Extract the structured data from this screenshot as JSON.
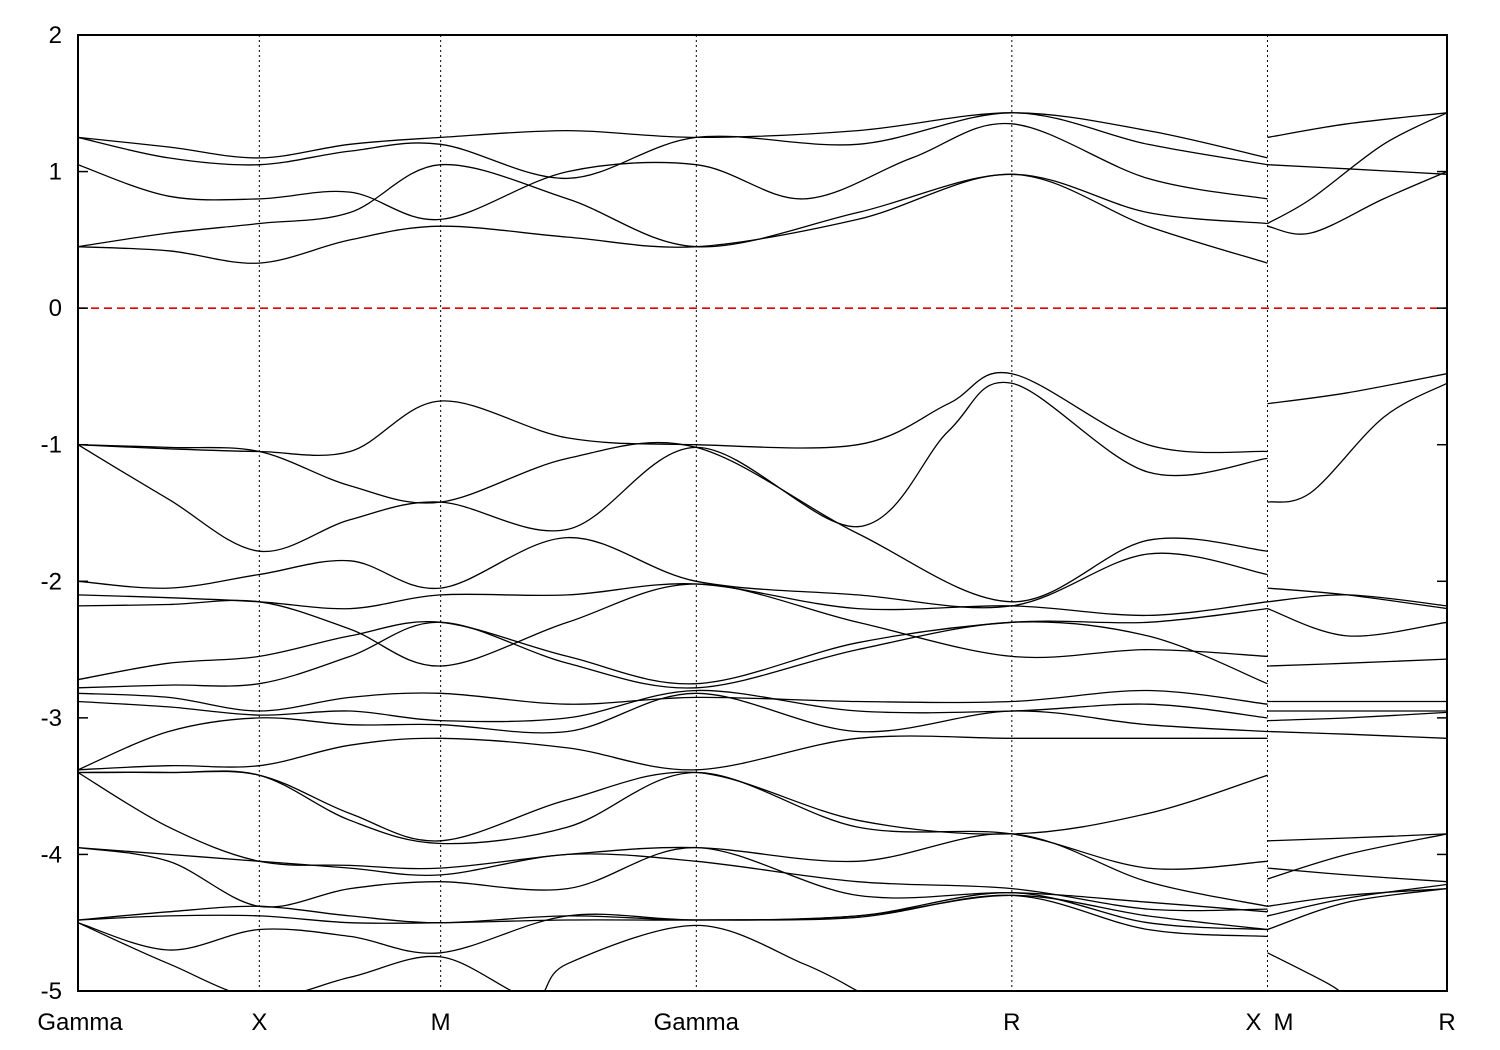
{
  "chart_data": {
    "type": "line",
    "title": "",
    "xlabel": "",
    "ylabel": "",
    "ylim": [
      -5,
      2
    ],
    "yticks": [
      2,
      1,
      0,
      -1,
      -2,
      -3,
      -4,
      -5
    ],
    "ytick_labels": [
      "2",
      "1",
      "0",
      "-1",
      "-2",
      "-3",
      "-4",
      "-5"
    ],
    "xlim": [
      0,
      7.55
    ],
    "kpoints": [
      {
        "label": "Gamma",
        "x": 0
      },
      {
        "label": "X",
        "x": 1.0
      },
      {
        "label": "M",
        "x": 2.0
      },
      {
        "label": "Gamma",
        "x": 3.41
      },
      {
        "label": "R",
        "x": 5.15
      },
      {
        "label": "X",
        "x": 6.56
      },
      {
        "label": "M",
        "x": 6.56
      },
      {
        "label": "R",
        "x": 7.55
      }
    ],
    "segment_breaks": [
      6.56
    ],
    "fermi_level": 0,
    "fermi_color": "#e00000",
    "line_color": "#000000",
    "grid": false,
    "series": [
      {
        "x": [
          0,
          0.5,
          1.0,
          1.5,
          2.0,
          2.7,
          3.41,
          4.3,
          5.15,
          5.9,
          6.56
        ],
        "y": [
          1.25,
          1.18,
          1.1,
          1.2,
          1.25,
          1.3,
          1.25,
          1.3,
          1.43,
          1.3,
          1.1
        ]
      },
      {
        "x": [
          0,
          0.5,
          1.0,
          1.5,
          2.0,
          2.7,
          3.41,
          4.3,
          5.15,
          5.9,
          6.56
        ],
        "y": [
          1.25,
          1.1,
          1.05,
          1.15,
          1.2,
          0.95,
          1.25,
          1.2,
          1.43,
          1.2,
          1.05
        ]
      },
      {
        "x": [
          0,
          0.5,
          1.0,
          1.5,
          2.0,
          2.7,
          3.41,
          4.0,
          4.6,
          5.15,
          5.9,
          6.56
        ],
        "y": [
          1.05,
          0.82,
          0.8,
          0.85,
          0.65,
          1.0,
          1.05,
          0.8,
          1.1,
          1.35,
          0.95,
          0.8
        ]
      },
      {
        "x": [
          0,
          0.5,
          1.0,
          1.5,
          2.0,
          2.7,
          3.41,
          4.3,
          5.15,
          5.9,
          6.56
        ],
        "y": [
          0.45,
          0.55,
          0.62,
          0.7,
          1.05,
          0.8,
          0.45,
          0.7,
          0.98,
          0.7,
          0.62
        ]
      },
      {
        "x": [
          0,
          0.5,
          1.0,
          1.5,
          2.0,
          2.7,
          3.41,
          4.3,
          5.15,
          5.9,
          6.56
        ],
        "y": [
          0.45,
          0.42,
          0.33,
          0.5,
          0.6,
          0.52,
          0.45,
          0.65,
          0.98,
          0.6,
          0.33
        ]
      },
      {
        "x": [
          6.56,
          7.0,
          7.55
        ],
        "y": [
          1.25,
          1.35,
          1.43
        ]
      },
      {
        "x": [
          6.56,
          7.0,
          7.55
        ],
        "y": [
          1.05,
          1.02,
          0.98
        ]
      },
      {
        "x": [
          6.56,
          6.8,
          7.2,
          7.55
        ],
        "y": [
          0.62,
          0.8,
          1.2,
          1.43
        ]
      },
      {
        "x": [
          6.56,
          6.8,
          7.2,
          7.55
        ],
        "y": [
          0.6,
          0.55,
          0.8,
          1.0
        ]
      },
      {
        "x": [
          0,
          0.5,
          1.0,
          1.5,
          2.0,
          2.7,
          3.41,
          4.3,
          4.8,
          5.15,
          5.9,
          6.56
        ],
        "y": [
          -1.0,
          -1.03,
          -1.05,
          -1.05,
          -0.68,
          -0.95,
          -1.0,
          -1.0,
          -0.7,
          -0.48,
          -1.0,
          -1.05
        ]
      },
      {
        "x": [
          0,
          0.5,
          1.0,
          1.5,
          2.0,
          2.7,
          3.41,
          4.3,
          4.8,
          5.15,
          5.9,
          6.56
        ],
        "y": [
          -1.0,
          -1.4,
          -1.78,
          -1.55,
          -1.42,
          -1.62,
          -1.02,
          -1.6,
          -0.9,
          -0.55,
          -1.2,
          -1.1
        ]
      },
      {
        "x": [
          0,
          0.5,
          1.0,
          1.5,
          2.0,
          2.7,
          3.41,
          4.3,
          5.15,
          5.9,
          6.56
        ],
        "y": [
          -1.0,
          -1.02,
          -1.05,
          -1.3,
          -1.42,
          -1.1,
          -1.02,
          -1.65,
          -2.15,
          -1.7,
          -1.78
        ]
      },
      {
        "x": [
          0,
          0.5,
          1.0,
          1.5,
          2.0,
          2.7,
          3.41,
          4.3,
          5.15,
          5.9,
          6.56
        ],
        "y": [
          -2.0,
          -2.05,
          -1.95,
          -1.85,
          -2.05,
          -1.68,
          -2.0,
          -2.1,
          -2.18,
          -1.8,
          -1.95
        ]
      },
      {
        "x": [
          0,
          0.5,
          1.0,
          1.5,
          2.0,
          2.7,
          3.41,
          4.3,
          5.15,
          5.9,
          6.56
        ],
        "y": [
          -2.1,
          -2.12,
          -2.15,
          -2.2,
          -2.1,
          -2.1,
          -2.02,
          -2.2,
          -2.18,
          -2.25,
          -2.15
        ]
      },
      {
        "x": [
          0,
          0.5,
          1.0,
          1.5,
          2.0,
          2.7,
          3.41,
          4.3,
          5.15,
          5.9,
          6.56
        ],
        "y": [
          -2.18,
          -2.17,
          -2.15,
          -2.35,
          -2.62,
          -2.3,
          -2.02,
          -2.3,
          -2.55,
          -2.5,
          -2.55
        ]
      },
      {
        "x": [
          0,
          0.5,
          1.0,
          1.5,
          2.0,
          2.7,
          3.41,
          4.3,
          5.15,
          5.9,
          6.56
        ],
        "y": [
          -2.72,
          -2.6,
          -2.55,
          -2.4,
          -2.3,
          -2.55,
          -2.75,
          -2.45,
          -2.3,
          -2.3,
          -2.2
        ]
      },
      {
        "x": [
          0,
          0.5,
          1.0,
          1.5,
          2.0,
          2.7,
          3.41,
          4.3,
          5.15,
          5.9,
          6.56
        ],
        "y": [
          -2.78,
          -2.76,
          -2.75,
          -2.55,
          -2.3,
          -2.6,
          -2.78,
          -2.5,
          -2.3,
          -2.4,
          -2.75
        ]
      },
      {
        "x": [
          0,
          0.5,
          1.0,
          1.5,
          2.0,
          2.7,
          3.41,
          4.3,
          5.15,
          5.9,
          6.56
        ],
        "y": [
          -2.82,
          -2.85,
          -2.95,
          -2.85,
          -2.82,
          -2.9,
          -2.85,
          -2.88,
          -2.88,
          -2.8,
          -2.9
        ]
      },
      {
        "x": [
          0,
          0.5,
          1.0,
          1.5,
          2.0,
          2.7,
          3.41,
          4.3,
          5.15,
          5.9,
          6.56
        ],
        "y": [
          -2.88,
          -2.92,
          -2.98,
          -2.95,
          -3.02,
          -3.0,
          -2.8,
          -2.95,
          -2.95,
          -2.9,
          -3.0
        ]
      },
      {
        "x": [
          0,
          0.5,
          1.0,
          1.5,
          2.0,
          2.7,
          3.41,
          4.3,
          5.15,
          5.9,
          6.56
        ],
        "y": [
          -3.38,
          -3.1,
          -3.0,
          -3.05,
          -3.05,
          -3.1,
          -2.82,
          -3.1,
          -2.95,
          -3.05,
          -3.1
        ]
      },
      {
        "x": [
          0,
          0.5,
          1.0,
          1.5,
          2.0,
          2.7,
          3.41,
          4.3,
          5.15,
          5.9,
          6.56
        ],
        "y": [
          -3.38,
          -3.35,
          -3.35,
          -3.2,
          -3.15,
          -3.22,
          -3.38,
          -3.15,
          -3.15,
          -3.15,
          -3.15
        ]
      },
      {
        "x": [
          0,
          0.5,
          1.0,
          1.5,
          2.0,
          2.7,
          3.41,
          4.3,
          5.15,
          5.9,
          6.56
        ],
        "y": [
          -3.4,
          -3.4,
          -3.42,
          -3.7,
          -3.9,
          -3.6,
          -3.4,
          -3.75,
          -3.85,
          -3.7,
          -3.42
        ]
      },
      {
        "x": [
          0,
          0.5,
          1.0,
          1.5,
          2.0,
          2.7,
          3.41,
          4.3,
          5.15,
          5.9,
          6.56
        ],
        "y": [
          -3.4,
          -3.4,
          -3.42,
          -3.75,
          -3.92,
          -3.8,
          -3.4,
          -3.8,
          -3.85,
          -4.1,
          -4.05
        ]
      },
      {
        "x": [
          0,
          0.5,
          1.0,
          1.5,
          2.0,
          2.7,
          3.41,
          4.3,
          5.15,
          5.9,
          6.56
        ],
        "y": [
          -3.4,
          -3.8,
          -4.05,
          -4.08,
          -4.1,
          -4.0,
          -3.95,
          -4.05,
          -3.85,
          -4.2,
          -4.38
        ]
      },
      {
        "x": [
          0,
          0.5,
          1.0,
          1.5,
          2.0,
          2.7,
          3.41,
          4.3,
          5.15,
          5.9,
          6.56
        ],
        "y": [
          -3.95,
          -4.0,
          -4.05,
          -4.1,
          -4.15,
          -4.0,
          -4.05,
          -4.2,
          -4.25,
          -4.4,
          -4.4
        ]
      },
      {
        "x": [
          0,
          0.5,
          1.0,
          1.5,
          2.0,
          2.7,
          3.41,
          4.3,
          5.15,
          5.9,
          6.56
        ],
        "y": [
          -3.95,
          -4.05,
          -4.38,
          -4.25,
          -4.2,
          -4.25,
          -3.95,
          -4.3,
          -4.28,
          -4.35,
          -4.42
        ]
      },
      {
        "x": [
          0,
          0.5,
          1.0,
          1.5,
          2.0,
          2.7,
          3.41,
          4.3,
          5.15,
          5.9,
          6.56
        ],
        "y": [
          -4.48,
          -4.42,
          -4.38,
          -4.45,
          -4.5,
          -4.45,
          -4.48,
          -4.45,
          -4.28,
          -4.5,
          -4.55
        ]
      },
      {
        "x": [
          0,
          0.5,
          1.0,
          1.5,
          2.0,
          2.7,
          3.41,
          4.3,
          5.15,
          5.9,
          6.56
        ],
        "y": [
          -4.48,
          -4.45,
          -4.45,
          -4.5,
          -4.5,
          -4.48,
          -4.48,
          -4.46,
          -4.3,
          -4.55,
          -4.6
        ]
      },
      {
        "x": [
          0,
          0.5,
          1.0,
          1.5,
          2.0,
          2.7,
          3.41,
          4.3,
          5.15,
          5.9,
          6.56
        ],
        "y": [
          -4.5,
          -4.7,
          -4.55,
          -4.6,
          -4.72,
          -4.45,
          -4.48,
          -4.45,
          -4.3,
          -4.45,
          -4.55
        ]
      },
      {
        "x": [
          0,
          0.5,
          1.0,
          1.5,
          2.0,
          2.5,
          2.7,
          3.41,
          4.0,
          4.3
        ],
        "y": [
          -4.5,
          -4.8,
          -5.05,
          -4.9,
          -4.75,
          -5.05,
          -4.8,
          -4.52,
          -4.8,
          -5.0
        ]
      },
      {
        "x": [
          6.56,
          7.0,
          7.55
        ],
        "y": [
          -0.7,
          -0.62,
          -0.48
        ]
      },
      {
        "x": [
          6.56,
          6.8,
          7.2,
          7.55
        ],
        "y": [
          -1.42,
          -1.35,
          -0.8,
          -0.55
        ]
      },
      {
        "x": [
          6.56,
          7.0,
          7.55
        ],
        "y": [
          -2.05,
          -2.1,
          -2.2
        ]
      },
      {
        "x": [
          6.56,
          7.0,
          7.55
        ],
        "y": [
          -2.15,
          -2.1,
          -2.18
        ]
      },
      {
        "x": [
          6.56,
          7.0,
          7.55
        ],
        "y": [
          -2.2,
          -2.4,
          -2.3
        ]
      },
      {
        "x": [
          6.56,
          7.0,
          7.55
        ],
        "y": [
          -2.62,
          -2.6,
          -2.57
        ]
      },
      {
        "x": [
          6.56,
          7.0,
          7.55
        ],
        "y": [
          -2.88,
          -2.88,
          -2.88
        ]
      },
      {
        "x": [
          6.56,
          7.0,
          7.55
        ],
        "y": [
          -2.95,
          -2.95,
          -2.95
        ]
      },
      {
        "x": [
          6.56,
          7.0,
          7.55
        ],
        "y": [
          -3.02,
          -3.0,
          -2.96
        ]
      },
      {
        "x": [
          6.56,
          7.0,
          7.55
        ],
        "y": [
          -3.1,
          -3.12,
          -3.15
        ]
      },
      {
        "x": [
          6.56,
          7.0,
          7.55
        ],
        "y": [
          -3.9,
          -3.88,
          -3.85
        ]
      },
      {
        "x": [
          6.56,
          7.0,
          7.55
        ],
        "y": [
          -4.1,
          -4.15,
          -4.2
        ]
      },
      {
        "x": [
          6.56,
          7.0,
          7.55
        ],
        "y": [
          -4.18,
          -4.0,
          -3.85
        ]
      },
      {
        "x": [
          6.56,
          7.0,
          7.55
        ],
        "y": [
          -4.38,
          -4.3,
          -4.25
        ]
      },
      {
        "x": [
          6.56,
          7.0,
          7.55
        ],
        "y": [
          -4.45,
          -4.32,
          -4.22
        ]
      },
      {
        "x": [
          6.56,
          7.0,
          7.55
        ],
        "y": [
          -4.55,
          -4.35,
          -4.25
        ]
      },
      {
        "x": [
          6.56,
          6.9,
          7.0
        ],
        "y": [
          -4.72,
          -4.95,
          -5.05
        ]
      }
    ]
  }
}
